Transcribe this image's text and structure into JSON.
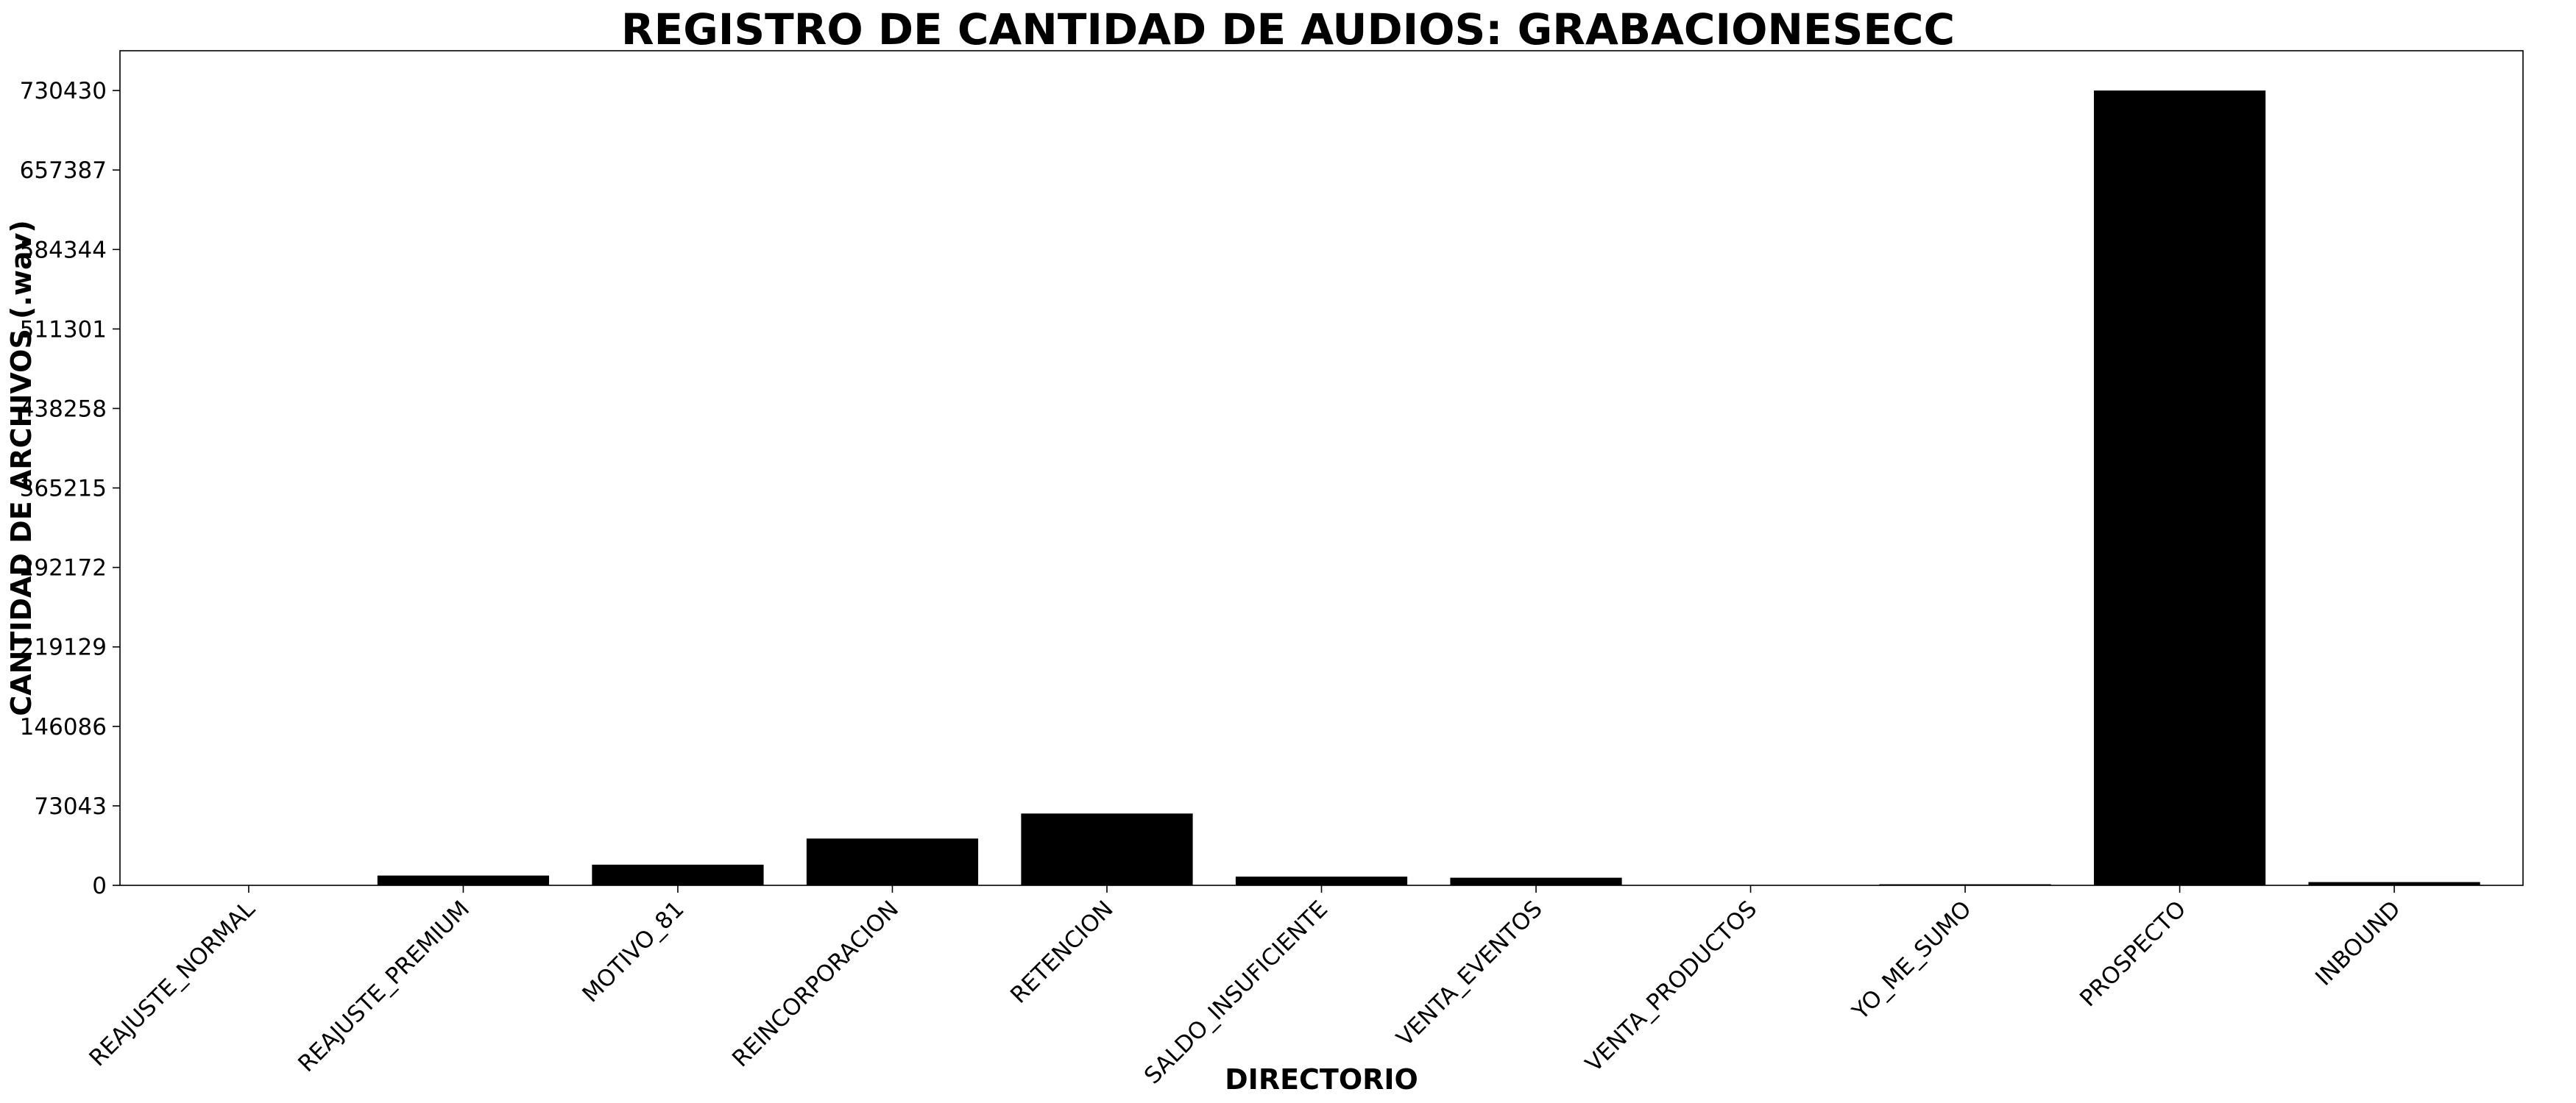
{
  "chart_data": {
    "type": "bar",
    "title": "REGISTRO DE CANTIDAD DE AUDIOS: GRABACIONESECC",
    "xlabel": "DIRECTORIO",
    "ylabel": "CANTIDAD DE ARCHIVOS (.wav)",
    "categories": [
      "REAJUSTE_NORMAL",
      "REAJUSTE_PREMIUM",
      "MOTIVO_81",
      "REINCORPORACION",
      "RETENCION",
      "SALDO_INSUFICIENTE",
      "VENTA_EVENTOS",
      "VENTA_PRODUCTOS",
      "YO_ME_SUMO",
      "PROSPECTO",
      "INBOUND"
    ],
    "values": [
      0,
      9000,
      19000,
      43000,
      66000,
      8000,
      7000,
      0,
      1000,
      730430,
      3000
    ],
    "yticks": [
      0,
      73043,
      146086,
      219129,
      292172,
      365215,
      438258,
      511301,
      584344,
      657387,
      730430
    ],
    "ylim": [
      0,
      767000
    ],
    "bar_color": "#000000",
    "grid": false
  }
}
